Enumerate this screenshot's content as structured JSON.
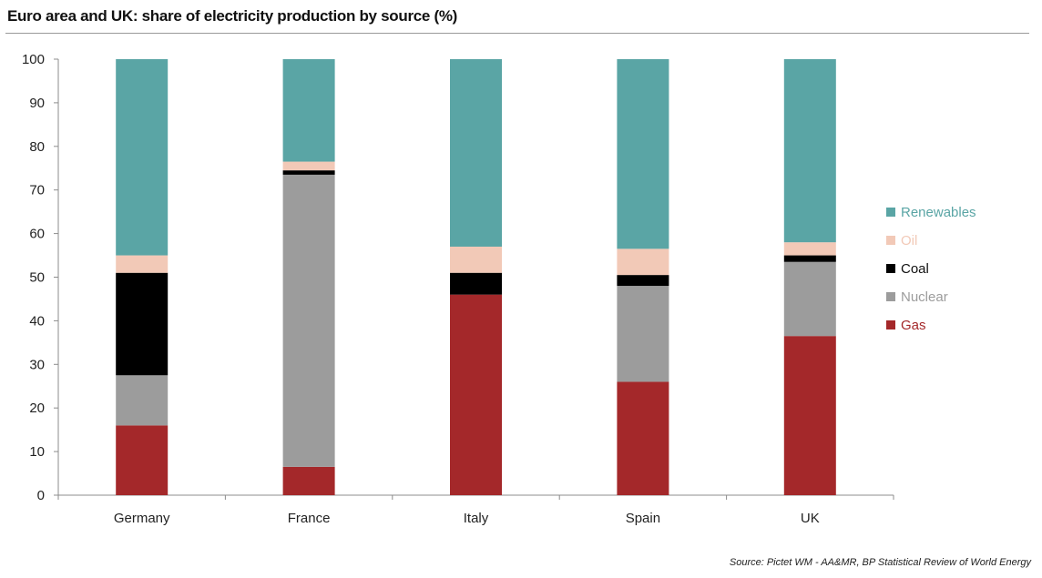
{
  "title": "Euro area and UK: share of electricity production by source (%)",
  "source": "Source: Pictet WM - AA&MR, BP Statistical Review of World Energy",
  "chart_data": {
    "type": "bar",
    "stacked": true,
    "title": "Euro area and UK: share of electricity production by source (%)",
    "xlabel": "",
    "ylabel": "",
    "ylim": [
      0,
      100
    ],
    "yticks": [
      0,
      10,
      20,
      30,
      40,
      50,
      60,
      70,
      80,
      90,
      100
    ],
    "grid": false,
    "legend_position": "right",
    "categories": [
      "Germany",
      "France",
      "Italy",
      "Spain",
      "UK"
    ],
    "series": [
      {
        "name": "Gas",
        "color": "#a4282a",
        "values": [
          16,
          6.5,
          46,
          26,
          36.5
        ]
      },
      {
        "name": "Nuclear",
        "color": "#9c9c9c",
        "values": [
          11.5,
          67,
          0,
          22,
          17
        ]
      },
      {
        "name": "Coal",
        "color": "#000000",
        "values": [
          23.5,
          1,
          5,
          2.5,
          1.5
        ]
      },
      {
        "name": "Oil",
        "color": "#f2c9b7",
        "values": [
          4,
          2,
          6,
          6,
          3
        ]
      },
      {
        "name": "Renewables",
        "color": "#5aa5a5",
        "values": [
          45,
          23.5,
          43,
          43.5,
          42
        ]
      }
    ],
    "legend_order": [
      "Renewables",
      "Oil",
      "Coal",
      "Nuclear",
      "Gas"
    ]
  }
}
